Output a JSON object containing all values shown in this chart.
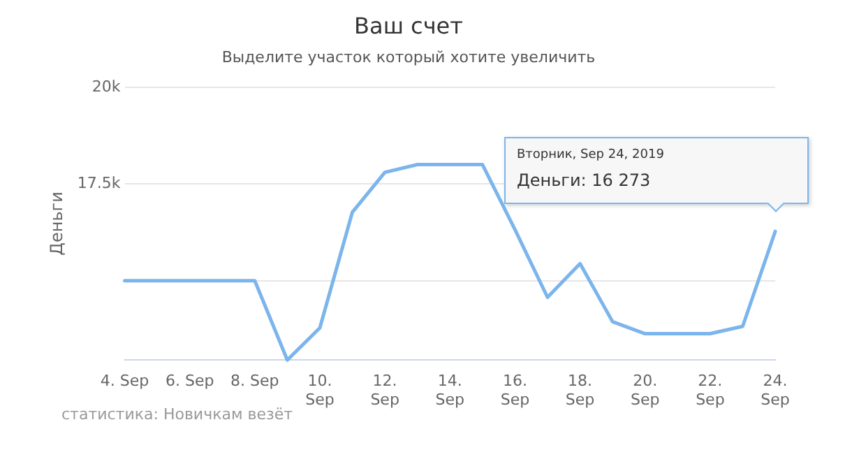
{
  "chart_data": {
    "type": "line",
    "title": "Ваш счет",
    "subtitle": "Выделите участок который хотите увеличить",
    "ylabel": "Деньги",
    "x": [
      "2019-09-04",
      "2019-09-05",
      "2019-09-06",
      "2019-09-07",
      "2019-09-08",
      "2019-09-09",
      "2019-09-10",
      "2019-09-11",
      "2019-09-12",
      "2019-09-13",
      "2019-09-14",
      "2019-09-15",
      "2019-09-16",
      "2019-09-17",
      "2019-09-18",
      "2019-09-19",
      "2019-09-20",
      "2019-09-21",
      "2019-09-22",
      "2019-09-23",
      "2019-09-24"
    ],
    "series": [
      {
        "color": "#7cb5ec",
        "values": [
          15000,
          15000,
          15000,
          15000,
          15000,
          12950,
          13780,
          16770,
          17800,
          18000,
          18000,
          18000,
          16320,
          14570,
          15440,
          13940,
          13630,
          13630,
          13630,
          13820,
          16273
        ]
      }
    ],
    "xlim": [
      "2019-09-04",
      "2019-09-24"
    ],
    "xticks": [
      {
        "value": "2019-09-04",
        "label": "4. Sep"
      },
      {
        "value": "2019-09-06",
        "label": "6. Sep"
      },
      {
        "value": "2019-09-08",
        "label": "8. Sep"
      },
      {
        "value": "2019-09-10",
        "label": "10. Sep"
      },
      {
        "value": "2019-09-12",
        "label": "12. Sep"
      },
      {
        "value": "2019-09-14",
        "label": "14. Sep"
      },
      {
        "value": "2019-09-16",
        "label": "16. Sep"
      },
      {
        "value": "2019-09-18",
        "label": "18. Sep"
      },
      {
        "value": "2019-09-20",
        "label": "20. Sep"
      },
      {
        "value": "2019-09-22",
        "label": "22. Sep"
      },
      {
        "value": "2019-09-24",
        "label": "24. Sep"
      }
    ],
    "ylim": [
      12950,
      20000
    ],
    "yticks": [
      {
        "value": 15000,
        "label": null
      },
      {
        "value": 17500,
        "label": "17.5k"
      },
      {
        "value": 20000,
        "label": "20k"
      }
    ],
    "grid": "y",
    "legend": false,
    "marker": "none",
    "line_style": "solid",
    "annotations": [
      "Вторник, Sep 24, 2019\nДеньги: 16 273",
      "статистика: Новичкам везёт"
    ]
  }
}
